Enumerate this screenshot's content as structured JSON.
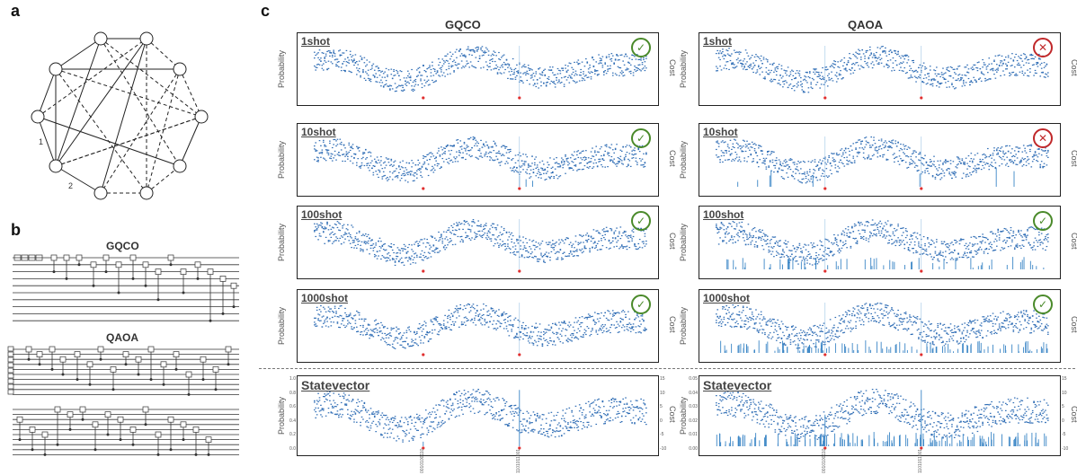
{
  "panels": {
    "a": "a",
    "b": "b",
    "c": "c"
  },
  "graph": {
    "edge_labels": [
      "1",
      "2"
    ]
  },
  "circuits": {
    "gqco_title": "GQCO",
    "qaoa_title": "QAOA"
  },
  "columns": {
    "left": "GQCO",
    "right": "QAOA"
  },
  "axis_labels": {
    "left": "Probability",
    "right": "Cost"
  },
  "rows": [
    {
      "label": "1shot",
      "gqco_status": "success",
      "qaoa_status": "failure"
    },
    {
      "label": "10shot",
      "gqco_status": "success",
      "qaoa_status": "failure"
    },
    {
      "label": "100shot",
      "gqco_status": "success",
      "qaoa_status": "success"
    },
    {
      "label": "1000shot",
      "gqco_status": "success",
      "qaoa_status": "success"
    },
    {
      "label": "Statevector"
    }
  ],
  "statevector": {
    "gqco_yticks": [
      "1.0",
      "0.8",
      "0.6",
      "0.4",
      "0.2",
      "0.0"
    ],
    "gqco_cost_ticks": [
      "15",
      "10",
      "5",
      "0",
      "-5",
      "-10"
    ],
    "qaoa_yticks": [
      "0.05",
      "0.04",
      "0.03",
      "0.02",
      "0.01",
      "0.00"
    ],
    "qaoa_cost_ticks": [
      "15",
      "10",
      "5",
      "0",
      "-5",
      "-10"
    ],
    "x_ticks": [
      "0010100110",
      "1101011001"
    ]
  },
  "icons": {
    "success": "check-circle-icon",
    "failure": "x-circle-icon"
  },
  "colors": {
    "success": "#4a8a2a",
    "failure": "#c0282a",
    "cost_points": "#2f6db5",
    "prob_bars": "#3b86c6",
    "optimum": "#e03030"
  }
}
